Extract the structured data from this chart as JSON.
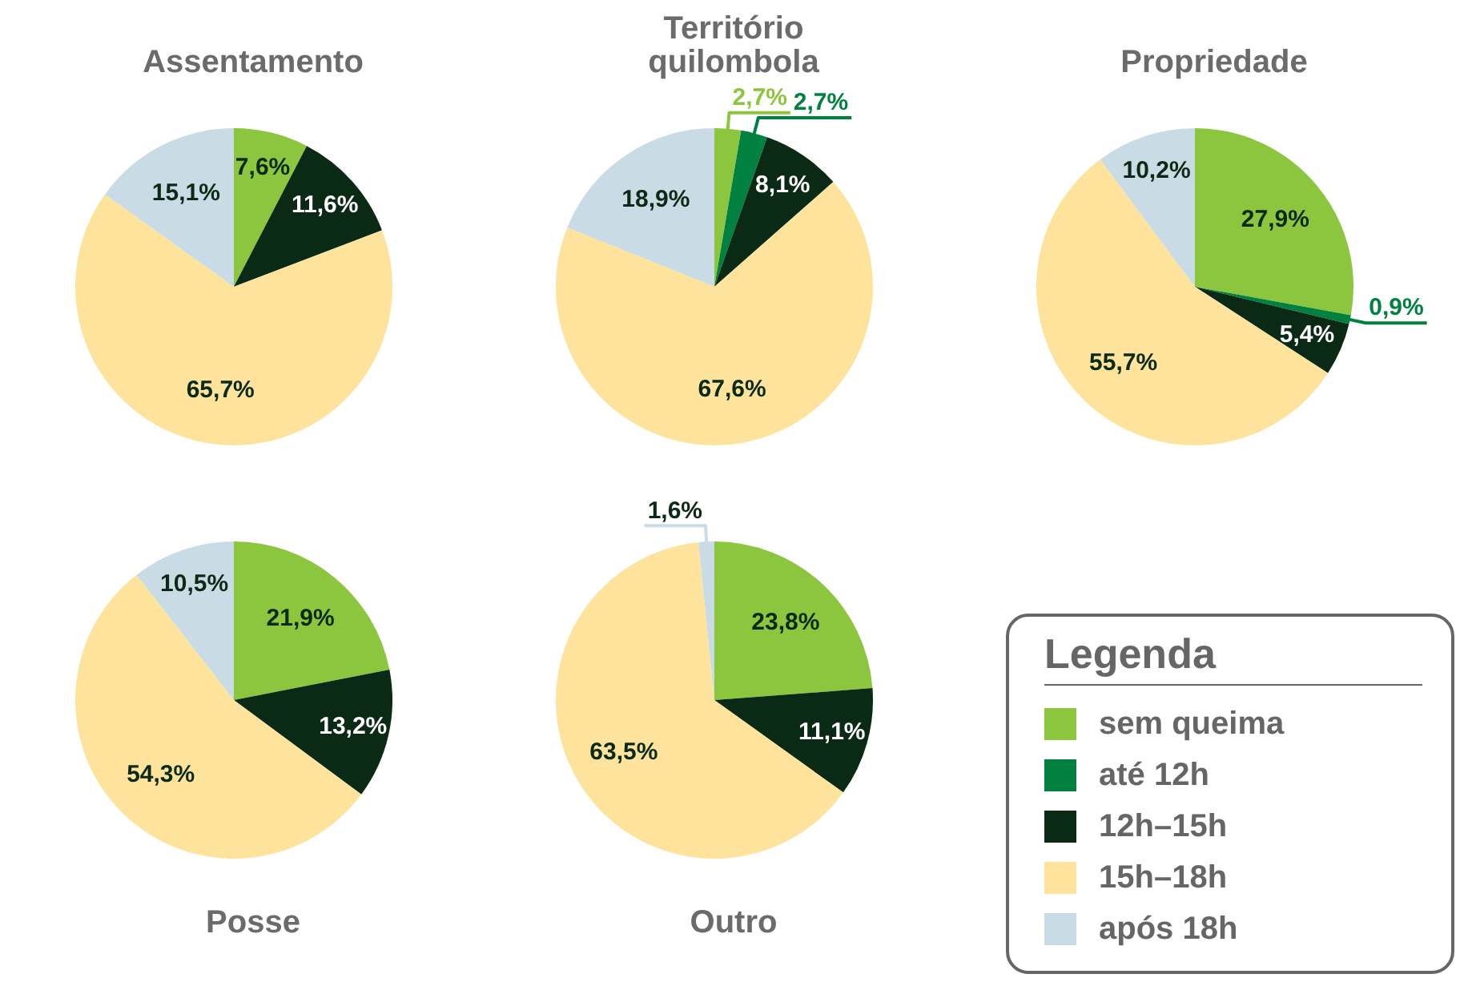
{
  "chart_data": [
    {
      "type": "pie",
      "title": "Assentamento",
      "categories": [
        "sem queima",
        "até 12h",
        "12h–15h",
        "15h–18h",
        "após 18h"
      ],
      "values": [
        7.6,
        null,
        11.6,
        65.7,
        15.1
      ],
      "value_labels": [
        "7,6%",
        null,
        "11,6%",
        "65,7%",
        "15,1%"
      ],
      "colors": [
        "#8cc63f",
        "#00813f",
        "#0b2a15",
        "#fde39b",
        "#c9dce5"
      ],
      "legend": "bottom right",
      "legend_title": "Legenda"
    },
    {
      "type": "pie",
      "title": "Território quilombola",
      "values": [
        2.7,
        2.7,
        8.1,
        67.6,
        18.9
      ],
      "value_labels": [
        "2,7%",
        "2,7%",
        "8,1%",
        "67,6%",
        "18,9%"
      ],
      "colors": [
        "#8cc63f",
        "#00813f",
        "#0b2a15",
        "#fde39b",
        "#c9dce5"
      ]
    },
    {
      "type": "pie",
      "title": "Propriedade",
      "values": [
        27.9,
        0.9,
        5.4,
        55.7,
        10.2
      ],
      "value_labels": [
        "27,9%",
        "0,9%",
        "5,4%",
        "55,7%",
        "10,2%"
      ],
      "colors": [
        "#8cc63f",
        "#00813f",
        "#0b2a15",
        "#fde39b",
        "#c9dce5"
      ]
    },
    {
      "type": "pie",
      "title": "Posse",
      "values": [
        21.9,
        null,
        13.2,
        54.3,
        10.5
      ],
      "value_labels": [
        "21,9%",
        null,
        "13,2%",
        "54,3%",
        "10,5%"
      ],
      "colors": [
        "#8cc63f",
        "#00813f",
        "#0b2a15",
        "#fde39b",
        "#c9dce5"
      ]
    },
    {
      "type": "pie",
      "title": "Outro",
      "values": [
        23.8,
        null,
        11.1,
        63.5,
        1.6
      ],
      "value_labels": [
        "23,8%",
        null,
        "11,1%",
        "63,5%",
        "1,6%"
      ],
      "colors": [
        "#8cc63f",
        "#00813f",
        "#0b2a15",
        "#fde39b",
        "#c9dce5"
      ]
    }
  ]
}
